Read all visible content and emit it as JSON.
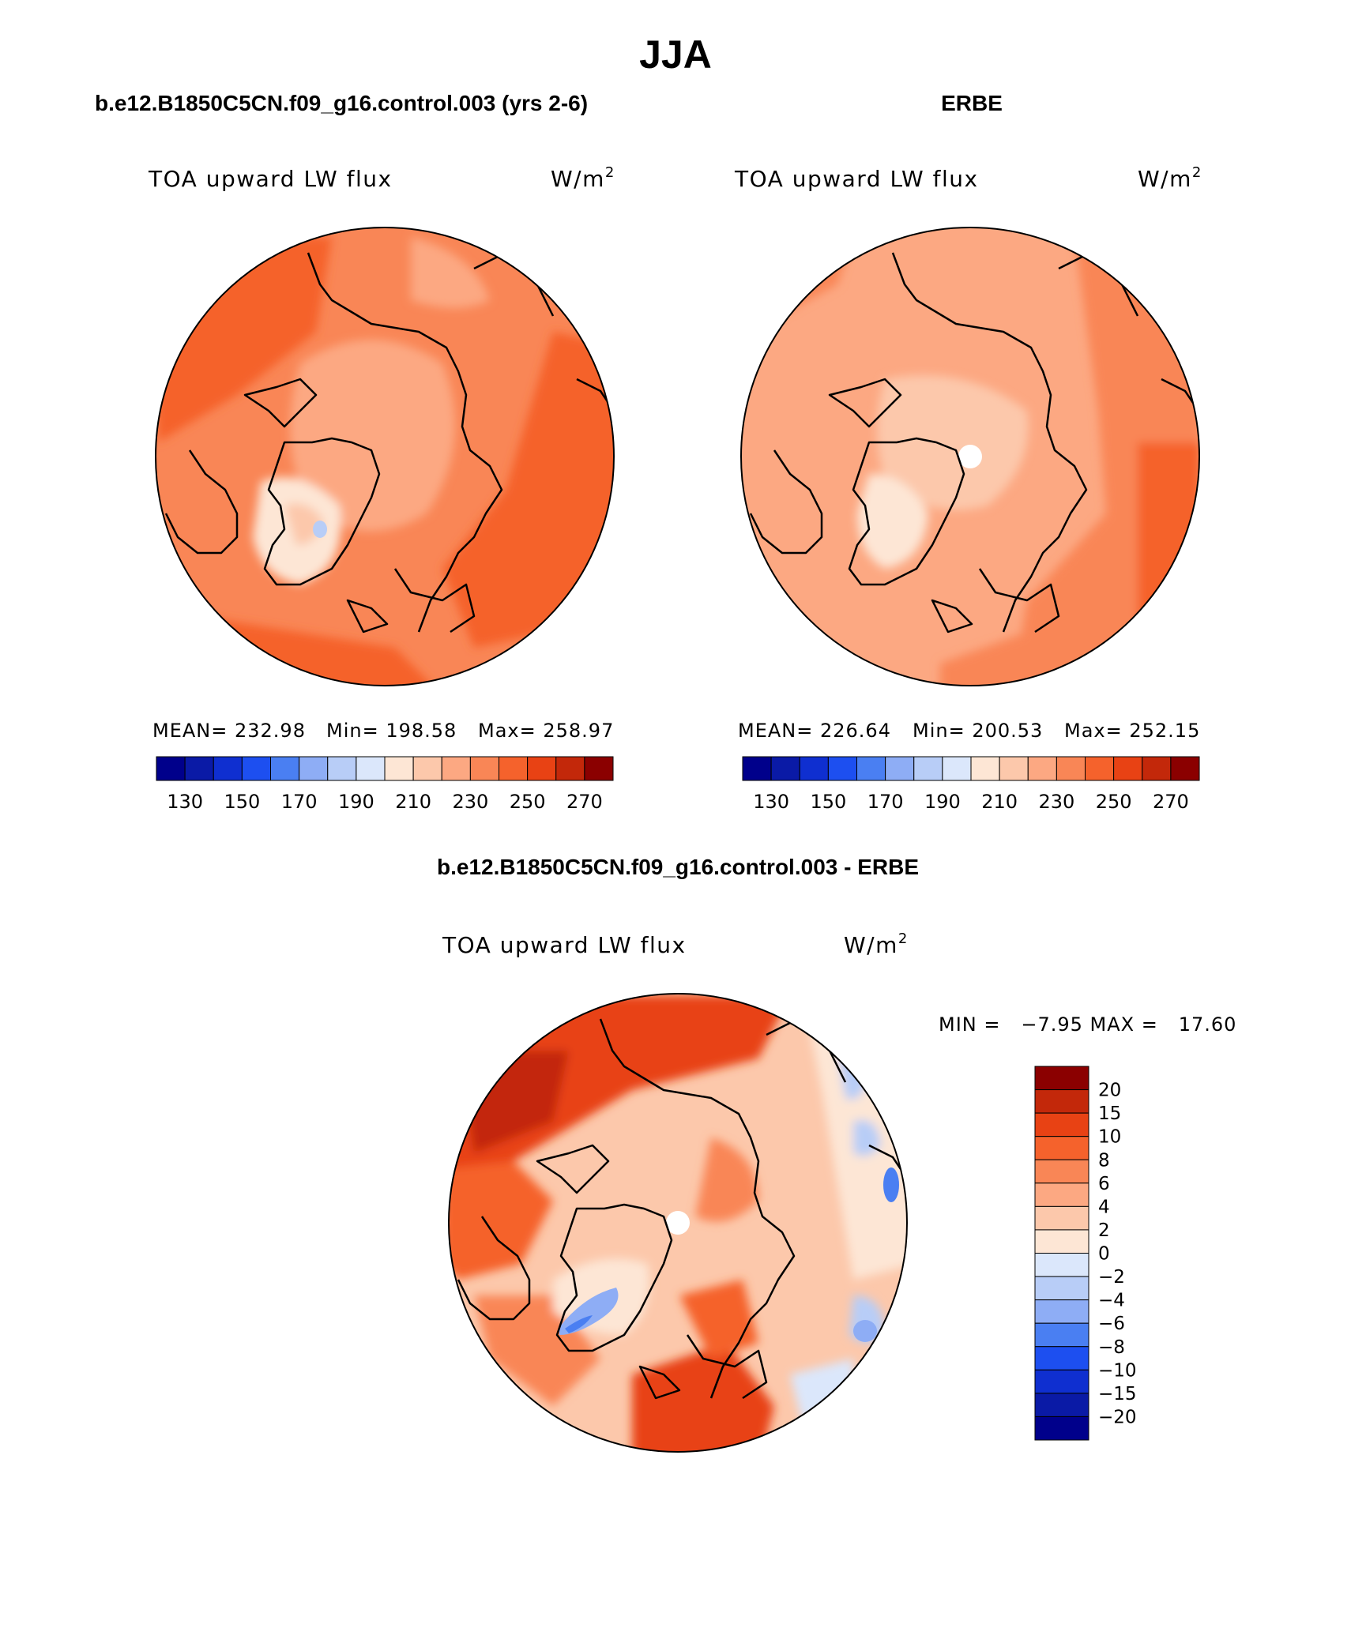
{
  "figure": {
    "title": "JJA",
    "colors": {
      "blue_1": "#00008b",
      "blue_2": "#0a1aa6",
      "blue_3": "#0f2fd0",
      "blue_4": "#1d4ff0",
      "blue_5": "#4a7ff2",
      "blue_6": "#8eadf5",
      "blue_7": "#b8cdf7",
      "blue_8": "#dbe7fb",
      "peach_1": "#fde6d5",
      "peach_2": "#fcc8ab",
      "peach_3": "#fca882",
      "orange_1": "#f98656",
      "orange_2": "#f5622c",
      "orange_3": "#e84214",
      "red_1": "#c3280a",
      "red_2": "#8b0000",
      "coast": "#000000"
    }
  },
  "panels": [
    {
      "header": "b.e12.B1850C5CN.f09_g16.control.003 (yrs 2-6)",
      "variable": "TOA upward LW flux",
      "units": "W/m",
      "units_exponent": "2",
      "stats": {
        "mean": "MEAN= 232.98",
        "min": "Min= 198.58",
        "max": "Max= 258.97"
      },
      "colorbar_labels": [
        "130",
        "150",
        "170",
        "190",
        "210",
        "230",
        "250",
        "270"
      ],
      "has_pole_hole": false
    },
    {
      "header": "ERBE",
      "variable": "TOA upward LW flux",
      "units": "W/m",
      "units_exponent": "2",
      "stats": {
        "mean": "MEAN= 226.64",
        "min": "Min= 200.53",
        "max": "Max= 252.15"
      },
      "colorbar_labels": [
        "130",
        "150",
        "170",
        "190",
        "210",
        "230",
        "250",
        "270"
      ],
      "has_pole_hole": true
    },
    {
      "header": "b.e12.B1850C5CN.f09_g16.control.003 - ERBE",
      "variable": "TOA upward LW flux",
      "units": "W/m",
      "units_exponent": "2",
      "stats": {
        "minmax": "MIN =   −7.95 MAX =   17.60"
      },
      "colorbar_labels": [
        "20",
        "15",
        "10",
        "8",
        "6",
        "4",
        "2",
        "0",
        "−2",
        "−4",
        "−6",
        "−8",
        "−10",
        "−15",
        "−20"
      ],
      "has_pole_hole": true
    }
  ]
}
